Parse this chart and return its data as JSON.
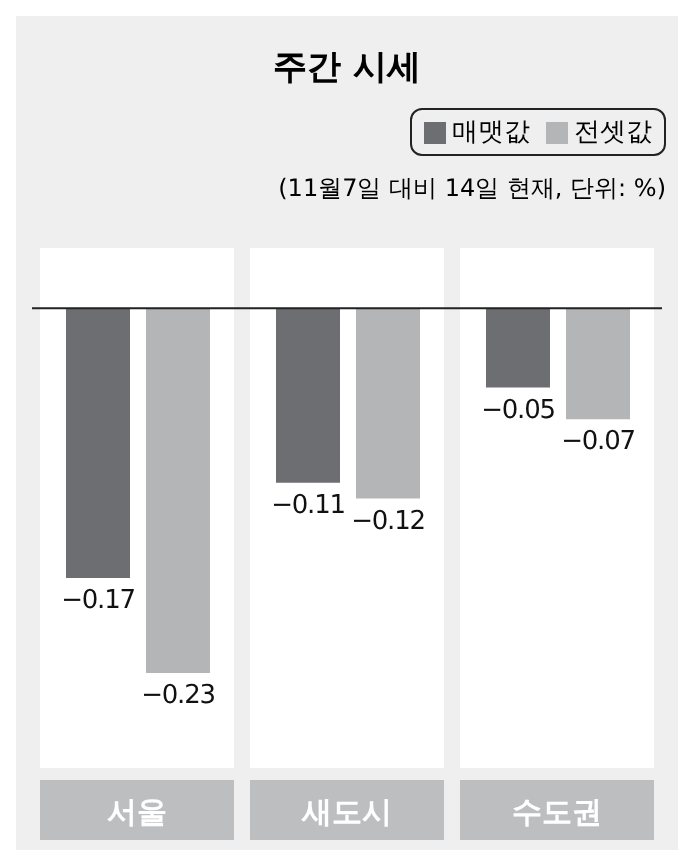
{
  "chart_data": {
    "type": "bar",
    "title": "주간 시세",
    "annotations": [
      "(11월7일 대비 14일 현재, 단위: %)"
    ],
    "categories": [
      "서울",
      "새도시",
      "수도권"
    ],
    "series": [
      {
        "name": "매맷값",
        "color": "#6d6e71",
        "values": [
          -0.17,
          -0.11,
          -0.05
        ]
      },
      {
        "name": "전셋값",
        "color": "#b4b5b7",
        "values": [
          -0.23,
          -0.12,
          -0.07
        ]
      }
    ],
    "ref_lines": [
      {
        "axis": "y",
        "value": 0,
        "color": "#222222"
      }
    ],
    "data_labels": true,
    "legend": "top right",
    "grid": false
  }
}
